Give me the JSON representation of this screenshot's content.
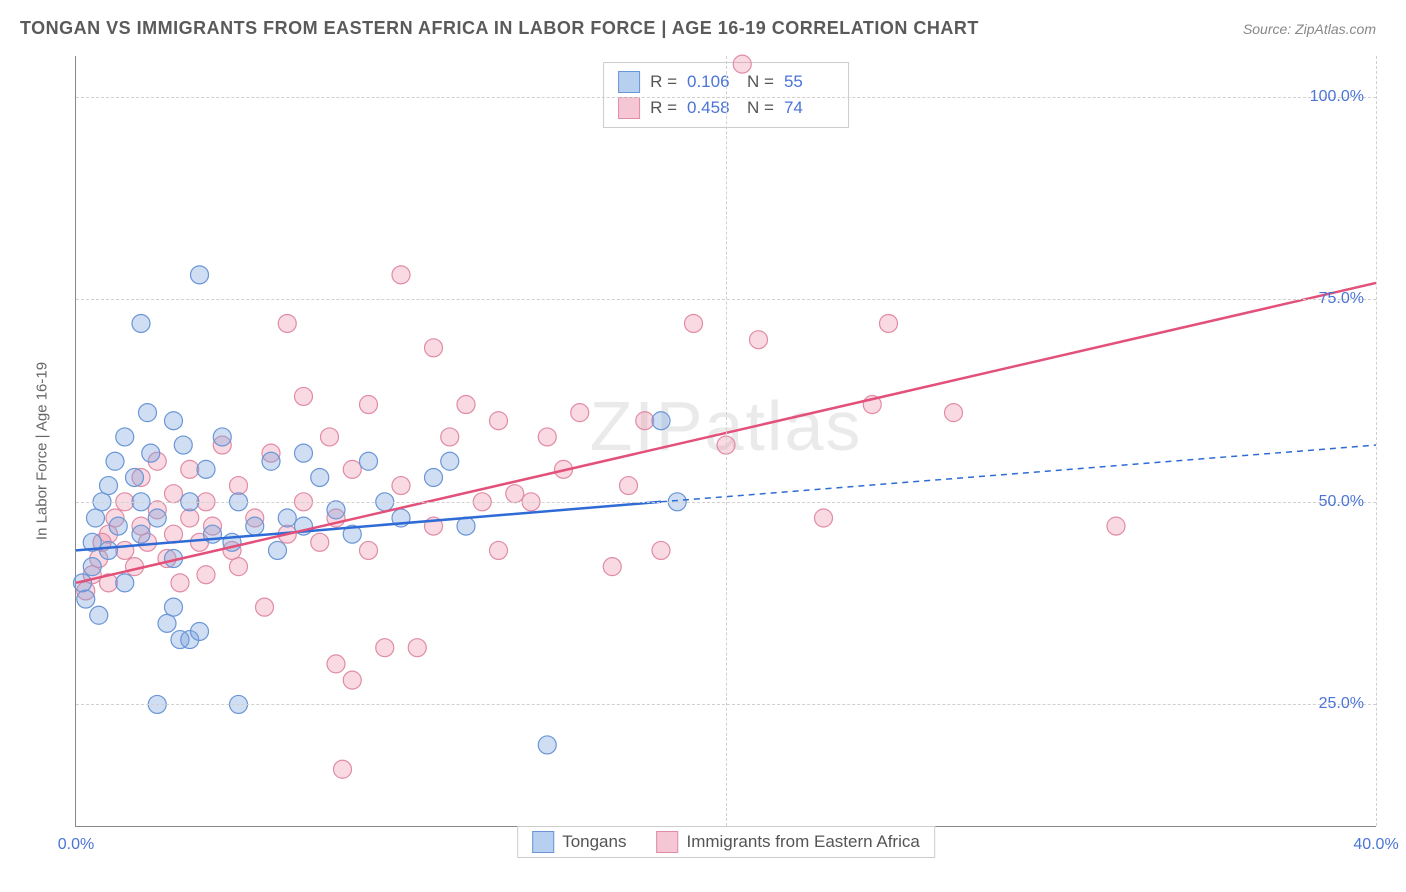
{
  "header": {
    "title": "TONGAN VS IMMIGRANTS FROM EASTERN AFRICA IN LABOR FORCE | AGE 16-19 CORRELATION CHART",
    "source": "Source: ZipAtlas.com"
  },
  "watermark": "ZIPatlas",
  "axes": {
    "y_label": "In Labor Force | Age 16-19",
    "x_domain": [
      0,
      40
    ],
    "y_domain": [
      10,
      105
    ],
    "x_ticks": [
      {
        "value": 0,
        "label": "0.0%"
      },
      {
        "value": 20,
        "label": ""
      },
      {
        "value": 40,
        "label": "40.0%"
      }
    ],
    "y_ticks": [
      {
        "value": 25,
        "label": "25.0%"
      },
      {
        "value": 50,
        "label": "50.0%"
      },
      {
        "value": 75,
        "label": "75.0%"
      },
      {
        "value": 100,
        "label": "100.0%"
      }
    ]
  },
  "series": {
    "tongans": {
      "label": "Tongans",
      "fill_color": "rgba(120,160,220,0.35)",
      "stroke_color": "#6a96d6",
      "swatch_fill": "#b8d0f0",
      "swatch_border": "#6a96d6",
      "marker_radius": 9,
      "stats": {
        "R": "0.106",
        "N": "55"
      },
      "trend": {
        "solid": {
          "x1": 0,
          "y1": 44,
          "x2": 18,
          "y2": 50
        },
        "dashed": {
          "x1": 18,
          "y1": 50,
          "x2": 40,
          "y2": 57
        },
        "color": "#2e6bd6",
        "width": 2.5
      },
      "points": [
        [
          0.2,
          40
        ],
        [
          0.3,
          38
        ],
        [
          0.5,
          42
        ],
        [
          0.5,
          45
        ],
        [
          0.6,
          48
        ],
        [
          0.7,
          36
        ],
        [
          0.8,
          50
        ],
        [
          1.0,
          52
        ],
        [
          1.0,
          44
        ],
        [
          1.2,
          55
        ],
        [
          1.3,
          47
        ],
        [
          1.5,
          40
        ],
        [
          1.5,
          58
        ],
        [
          1.8,
          53
        ],
        [
          2.0,
          72
        ],
        [
          2.0,
          46
        ],
        [
          2.0,
          50
        ],
        [
          2.2,
          61
        ],
        [
          2.3,
          56
        ],
        [
          2.5,
          48
        ],
        [
          2.5,
          25
        ],
        [
          2.8,
          35
        ],
        [
          3.0,
          60
        ],
        [
          3.0,
          43
        ],
        [
          3.2,
          33
        ],
        [
          3.3,
          57
        ],
        [
          3.5,
          50
        ],
        [
          3.5,
          33
        ],
        [
          3.8,
          78
        ],
        [
          4.0,
          54
        ],
        [
          4.2,
          46
        ],
        [
          4.5,
          58
        ],
        [
          4.8,
          45
        ],
        [
          5.0,
          25
        ],
        [
          5.0,
          50
        ],
        [
          5.5,
          47
        ],
        [
          6.0,
          55
        ],
        [
          6.2,
          44
        ],
        [
          6.5,
          48
        ],
        [
          7.0,
          47
        ],
        [
          7.0,
          56
        ],
        [
          7.5,
          53
        ],
        [
          8.0,
          49
        ],
        [
          8.5,
          46
        ],
        [
          9.0,
          55
        ],
        [
          9.5,
          50
        ],
        [
          10.0,
          48
        ],
        [
          11.0,
          53
        ],
        [
          11.5,
          55
        ],
        [
          12.0,
          47
        ],
        [
          14.5,
          20
        ],
        [
          18.0,
          60
        ],
        [
          18.5,
          50
        ],
        [
          3.0,
          37
        ],
        [
          3.8,
          34
        ]
      ]
    },
    "immigrants": {
      "label": "Immigrants from Eastern Africa",
      "fill_color": "rgba(235,130,160,0.3)",
      "stroke_color": "#e08ca5",
      "swatch_fill": "#f5c6d4",
      "swatch_border": "#e08ca5",
      "marker_radius": 9,
      "stats": {
        "R": "0.458",
        "N": "74"
      },
      "trend": {
        "solid": {
          "x1": 0,
          "y1": 40,
          "x2": 40,
          "y2": 77
        },
        "dashed": null,
        "color": "#e3507a",
        "width": 2.5
      },
      "points": [
        [
          0.3,
          39
        ],
        [
          0.5,
          41
        ],
        [
          0.7,
          43
        ],
        [
          0.8,
          45
        ],
        [
          1.0,
          40
        ],
        [
          1.0,
          46
        ],
        [
          1.2,
          48
        ],
        [
          1.5,
          44
        ],
        [
          1.5,
          50
        ],
        [
          1.8,
          42
        ],
        [
          2.0,
          47
        ],
        [
          2.0,
          53
        ],
        [
          2.2,
          45
        ],
        [
          2.5,
          49
        ],
        [
          2.5,
          55
        ],
        [
          2.8,
          43
        ],
        [
          3.0,
          46
        ],
        [
          3.0,
          51
        ],
        [
          3.2,
          40
        ],
        [
          3.5,
          48
        ],
        [
          3.5,
          54
        ],
        [
          3.8,
          45
        ],
        [
          4.0,
          50
        ],
        [
          4.2,
          47
        ],
        [
          4.5,
          57
        ],
        [
          4.8,
          44
        ],
        [
          5.0,
          52
        ],
        [
          5.0,
          42
        ],
        [
          5.5,
          48
        ],
        [
          5.8,
          37
        ],
        [
          6.0,
          56
        ],
        [
          6.5,
          72
        ],
        [
          6.5,
          46
        ],
        [
          7.0,
          50
        ],
        [
          7.0,
          63
        ],
        [
          7.5,
          45
        ],
        [
          7.8,
          58
        ],
        [
          8.0,
          30
        ],
        [
          8.0,
          48
        ],
        [
          8.2,
          17
        ],
        [
          8.5,
          54
        ],
        [
          8.5,
          28
        ],
        [
          9.0,
          44
        ],
        [
          9.0,
          62
        ],
        [
          9.5,
          32
        ],
        [
          10.0,
          52
        ],
        [
          10.0,
          78
        ],
        [
          10.5,
          32
        ],
        [
          11.0,
          47
        ],
        [
          11.0,
          69
        ],
        [
          11.5,
          58
        ],
        [
          12.0,
          62
        ],
        [
          12.5,
          50
        ],
        [
          13.0,
          44
        ],
        [
          13.0,
          60
        ],
        [
          13.5,
          51
        ],
        [
          14.0,
          50
        ],
        [
          14.5,
          58
        ],
        [
          15.0,
          54
        ],
        [
          15.5,
          61
        ],
        [
          16.5,
          42
        ],
        [
          17.0,
          52
        ],
        [
          17.5,
          60
        ],
        [
          18.0,
          44
        ],
        [
          19.0,
          72
        ],
        [
          20.0,
          57
        ],
        [
          20.5,
          104
        ],
        [
          21.0,
          70
        ],
        [
          23.0,
          48
        ],
        [
          24.5,
          62
        ],
        [
          25.0,
          72
        ],
        [
          27.0,
          61
        ],
        [
          32.0,
          47
        ],
        [
          4.0,
          41
        ]
      ]
    }
  },
  "stats_box": {
    "r_label": "R  =",
    "n_label": "N  ="
  },
  "chart_style": {
    "background_color": "#ffffff",
    "grid_color": "#d0d0d0",
    "axis_color": "#888888",
    "tick_font_color": "#4a74d8",
    "tick_font_size": 16,
    "title_color": "#5a5a5a"
  }
}
